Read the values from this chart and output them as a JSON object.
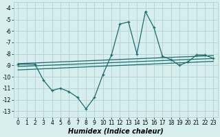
{
  "xlabel": "Humidex (Indice chaleur)",
  "bg_color": "#d6eeee",
  "grid_color": "#b8d4d4",
  "line_color": "#1a6b6b",
  "xlim": [
    -0.5,
    23.5
  ],
  "ylim": [
    -13.5,
    -3.5
  ],
  "yticks": [
    -4,
    -5,
    -6,
    -7,
    -8,
    -9,
    -10,
    -11,
    -12,
    -13
  ],
  "xticks": [
    0,
    1,
    2,
    3,
    4,
    5,
    6,
    7,
    8,
    9,
    10,
    11,
    12,
    13,
    14,
    15,
    16,
    17,
    18,
    19,
    20,
    21,
    22,
    23
  ],
  "series_main": {
    "x": [
      0,
      2,
      3,
      4,
      5,
      6,
      7,
      8,
      9,
      10,
      11,
      12,
      13,
      14,
      15,
      16,
      17,
      18,
      19,
      20,
      21,
      22,
      23
    ],
    "y": [
      -8.9,
      -8.9,
      -10.3,
      -11.2,
      -11.0,
      -11.3,
      -11.8,
      -12.8,
      -11.8,
      -9.8,
      -8.1,
      -5.4,
      -5.2,
      -8.0,
      -4.3,
      -5.7,
      -8.2,
      -8.5,
      -9.0,
      -8.7,
      -8.1,
      -8.1,
      -8.4
    ]
  },
  "regression_lines": [
    {
      "x": [
        0,
        23
      ],
      "y": [
        -8.85,
        -8.15
      ]
    },
    {
      "x": [
        0,
        23
      ],
      "y": [
        -9.1,
        -8.4
      ]
    },
    {
      "x": [
        0,
        23
      ],
      "y": [
        -9.4,
        -8.65
      ]
    }
  ],
  "tick_fontsize": 5.5,
  "xlabel_fontsize": 7
}
